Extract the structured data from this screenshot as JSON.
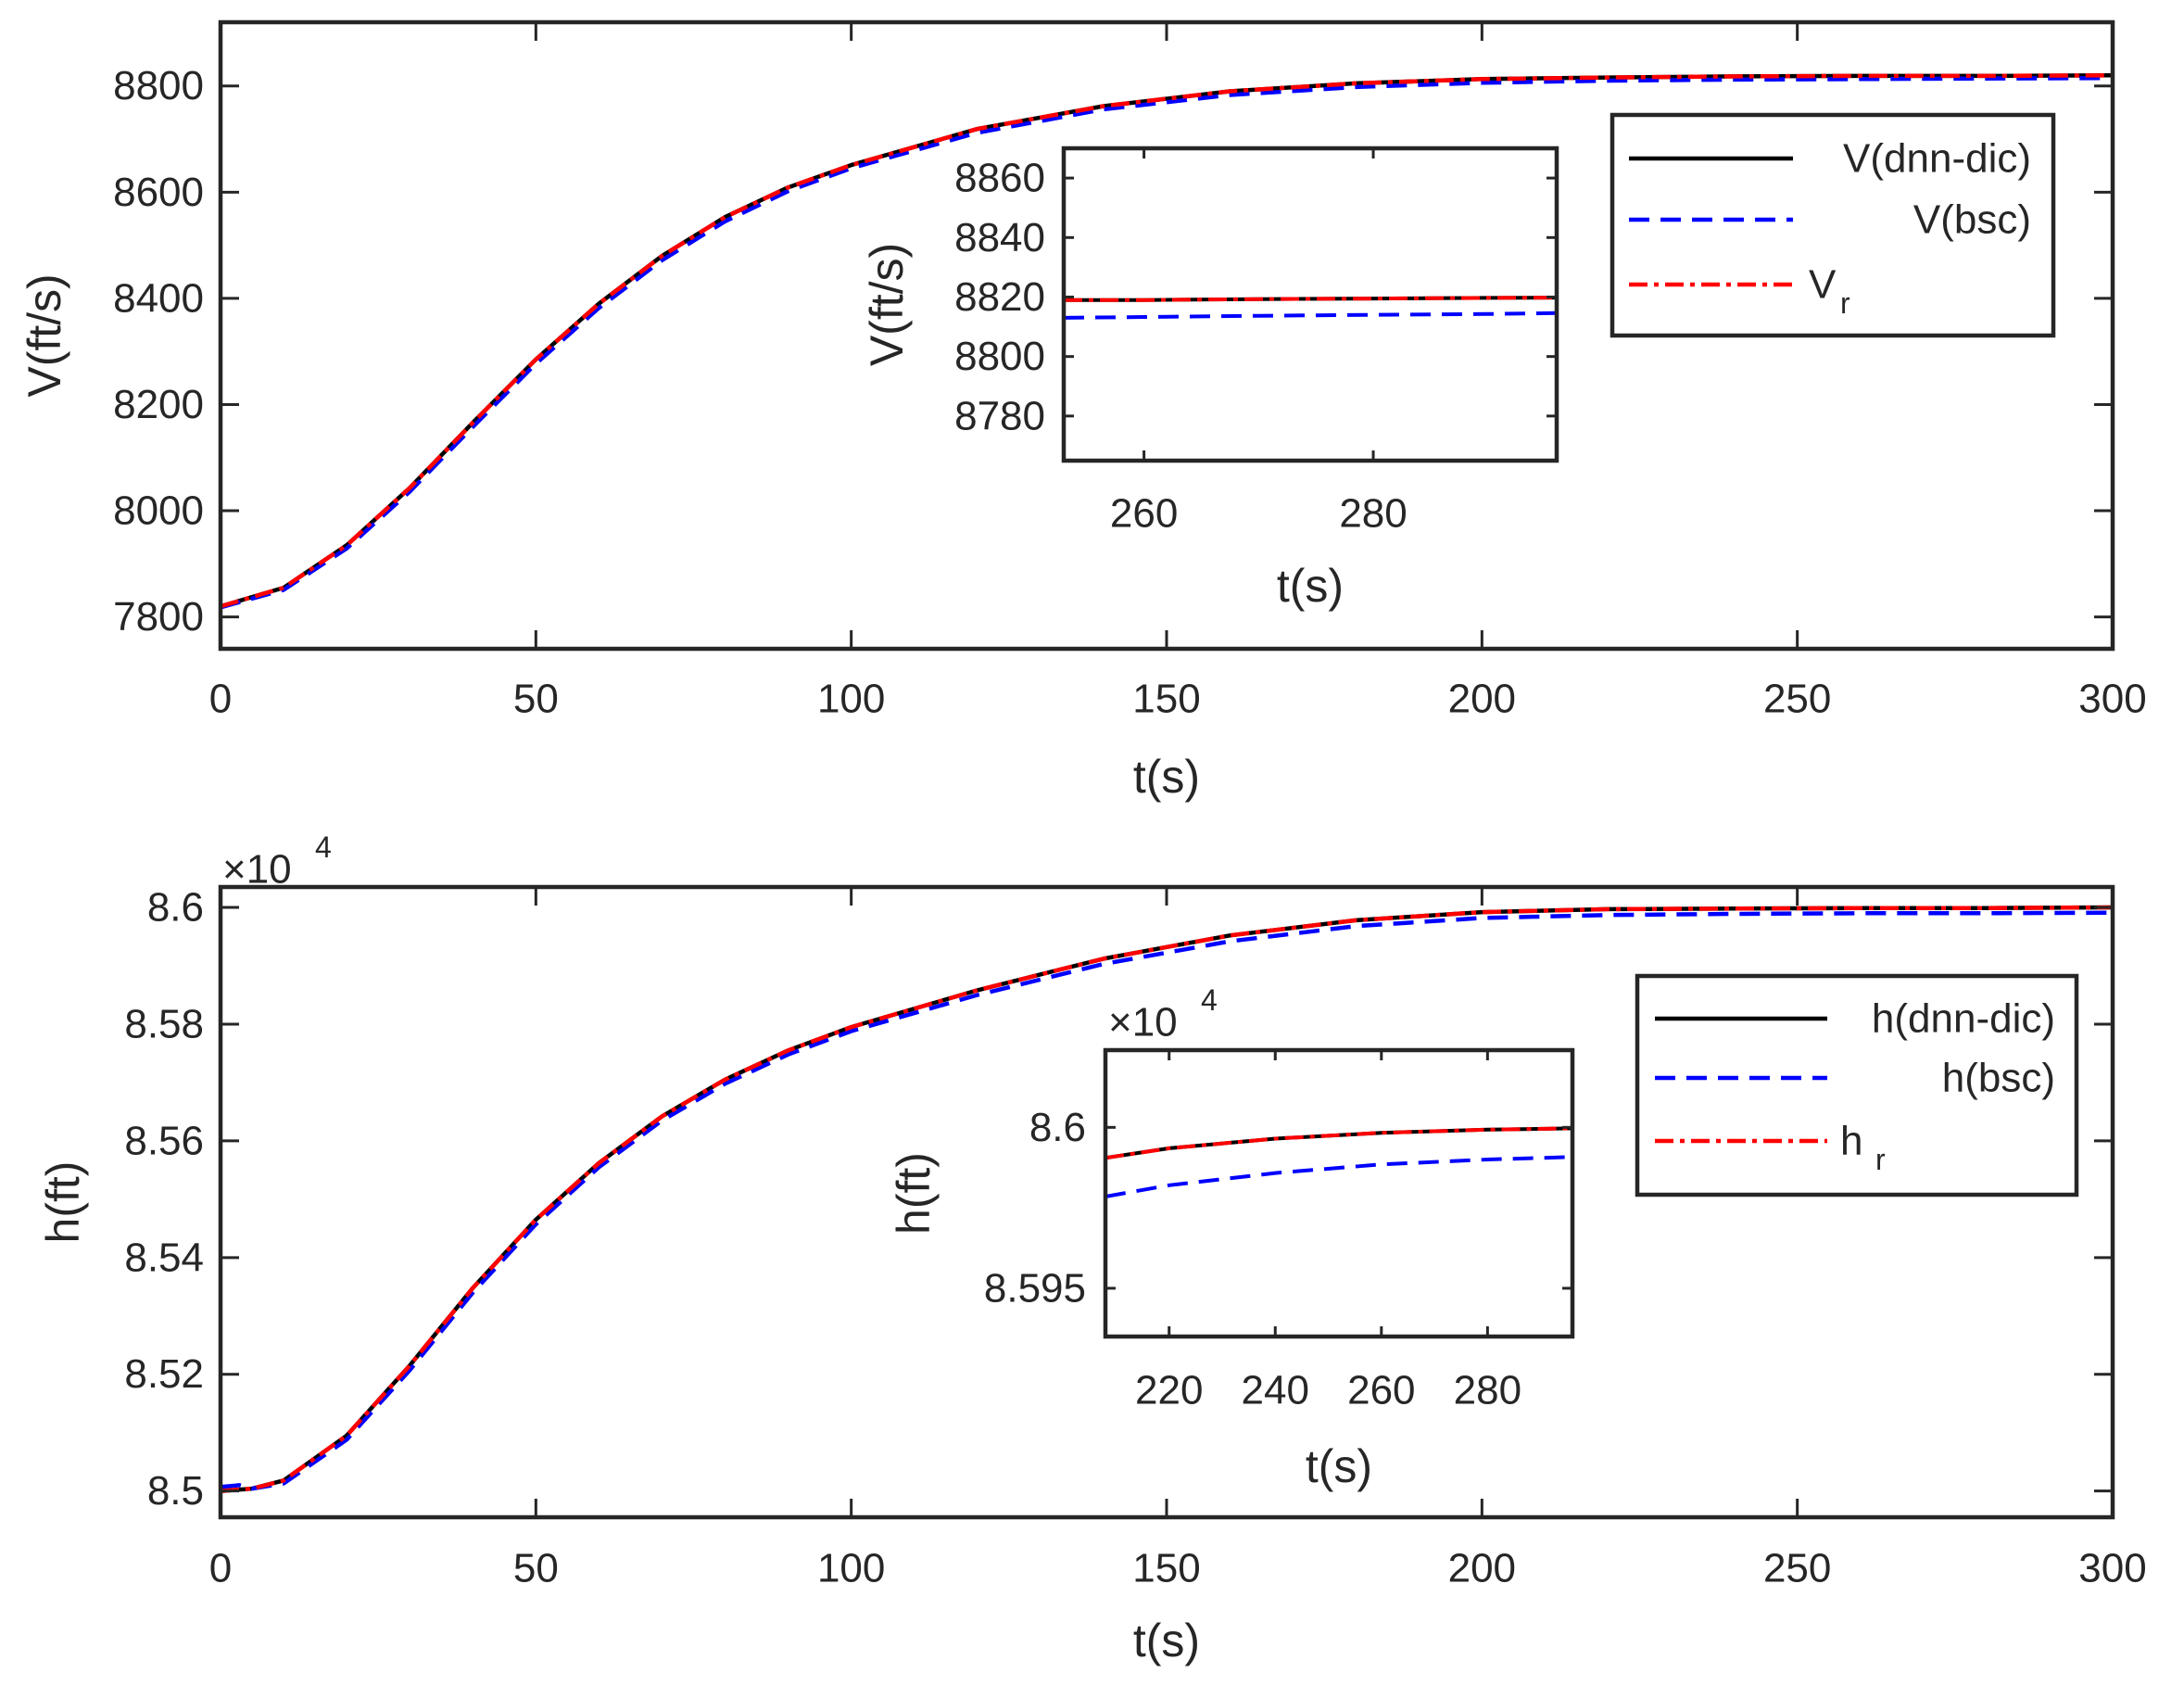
{
  "colors": {
    "dnn_dic": "#000000",
    "bsc": "#0000ff",
    "ref": "#ff0000",
    "axis": "#262626",
    "background": "#ffffff"
  },
  "chart_data": [
    {
      "id": "top_main",
      "type": "line",
      "title": "",
      "xlabel": "t(s)",
      "ylabel": "V(ft/s)",
      "xlim": [
        0,
        300
      ],
      "ylim": [
        7740,
        8920
      ],
      "xticks": [
        0,
        50,
        100,
        150,
        200,
        250,
        300
      ],
      "xtick_labels": [
        "0",
        "50",
        "100",
        "150",
        "200",
        "250",
        "300"
      ],
      "yticks": [
        7800,
        8000,
        8200,
        8400,
        8600,
        8800
      ],
      "ytick_labels": [
        "7800",
        "8000",
        "8200",
        "8400",
        "8600",
        "8800"
      ],
      "legend": {
        "placement": "top-right",
        "entries": [
          "V(dnn-dic)",
          "V(bsc)",
          "V",
          "r"
        ]
      },
      "series": [
        {
          "name": "V(dnn-dic)",
          "style": "solid",
          "color": "#000000",
          "x": [
            0,
            10,
            20,
            30,
            40,
            50,
            60,
            70,
            80,
            90,
            100,
            120,
            140,
            160,
            180,
            200,
            220,
            240,
            260,
            280,
            300
          ],
          "y": [
            7820,
            7855,
            7935,
            8043,
            8166,
            8285,
            8390,
            8480,
            8553,
            8609,
            8651,
            8719,
            8762,
            8790,
            8805,
            8813,
            8816,
            8818,
            8819,
            8819,
            8820
          ]
        },
        {
          "name": "V(bsc)",
          "style": "dashed",
          "color": "#0000ff",
          "x": [
            0,
            10,
            20,
            30,
            40,
            50,
            60,
            70,
            80,
            90,
            100,
            120,
            140,
            160,
            180,
            200,
            220,
            240,
            260,
            280,
            300
          ],
          "y": [
            7818,
            7851,
            7929,
            8036,
            8158,
            8277,
            8382,
            8472,
            8545,
            8602,
            8645,
            8712,
            8756,
            8783,
            8798,
            8806,
            8810,
            8812,
            8813,
            8814,
            8815
          ]
        },
        {
          "name": "Vr",
          "style": "dashdot",
          "color": "#ff0000",
          "x": [
            0,
            10,
            20,
            30,
            40,
            50,
            60,
            70,
            80,
            90,
            100,
            120,
            140,
            160,
            180,
            200,
            220,
            240,
            260,
            280,
            300
          ],
          "y": [
            7820,
            7855,
            7935,
            8043,
            8166,
            8285,
            8390,
            8480,
            8553,
            8609,
            8651,
            8719,
            8762,
            8790,
            8805,
            8813,
            8816,
            8818,
            8819,
            8819,
            8820
          ]
        }
      ]
    },
    {
      "id": "top_inset",
      "type": "line",
      "xlabel": "t(s)",
      "ylabel": "V(ft/s)",
      "xlim": [
        253,
        296
      ],
      "ylim": [
        8765,
        8870
      ],
      "xticks": [
        260,
        280
      ],
      "xtick_labels": [
        "260",
        "280"
      ],
      "yticks": [
        8780,
        8800,
        8820,
        8840,
        8860
      ],
      "ytick_labels": [
        "8780",
        "8800",
        "8820",
        "8840",
        "8860"
      ],
      "series": [
        {
          "name": "V(dnn-dic)",
          "style": "solid",
          "color": "#000000",
          "x": [
            253,
            260,
            270,
            280,
            290,
            296
          ],
          "y": [
            8819,
            8819,
            8819.3,
            8819.5,
            8819.7,
            8819.8
          ]
        },
        {
          "name": "V(bsc)",
          "style": "dashed",
          "color": "#0000ff",
          "x": [
            253,
            260,
            270,
            280,
            290,
            296
          ],
          "y": [
            8813,
            8813.3,
            8813.7,
            8814,
            8814.3,
            8814.6
          ]
        },
        {
          "name": "Vr",
          "style": "dashdot",
          "color": "#ff0000",
          "x": [
            253,
            260,
            270,
            280,
            290,
            296
          ],
          "y": [
            8819,
            8819,
            8819.3,
            8819.5,
            8819.7,
            8819.8
          ]
        }
      ]
    },
    {
      "id": "bottom_main",
      "type": "line",
      "title": "",
      "xlabel": "t(s)",
      "ylabel": "h(ft)",
      "exponent_label": "×10",
      "exponent_power": "4",
      "xlim": [
        0,
        300
      ],
      "ylim": [
        8.4955,
        8.6035
      ],
      "xticks": [
        0,
        50,
        100,
        150,
        200,
        250,
        300
      ],
      "xtick_labels": [
        "0",
        "50",
        "100",
        "150",
        "200",
        "250",
        "300"
      ],
      "yticks": [
        8.5,
        8.52,
        8.54,
        8.56,
        8.58,
        8.6
      ],
      "ytick_labels": [
        "8.5",
        "8.52",
        "8.54",
        "8.56",
        "8.58",
        "8.6"
      ],
      "legend": {
        "placement": "top-right",
        "entries": [
          "h(dnn-dic)",
          "h(bsc)",
          "h",
          "r"
        ]
      },
      "series": [
        {
          "name": "h(dnn-dic)",
          "style": "solid",
          "color": "#000000",
          "x": [
            0,
            5,
            10,
            20,
            30,
            40,
            50,
            60,
            70,
            80,
            90,
            100,
            120,
            140,
            160,
            180,
            200,
            220,
            240,
            260,
            280,
            300
          ],
          "y": [
            8.5,
            8.5004,
            8.5018,
            8.5095,
            8.5215,
            8.5348,
            8.5465,
            8.5562,
            8.5642,
            8.5705,
            8.5755,
            8.5795,
            8.5858,
            8.5912,
            8.5952,
            8.5978,
            8.5992,
            8.5997,
            8.5998,
            8.5999,
            8.5999,
            8.6
          ]
        },
        {
          "name": "h(bsc)",
          "style": "dashed",
          "color": "#0000ff",
          "x": [
            0,
            3,
            5,
            10,
            20,
            30,
            40,
            50,
            60,
            70,
            80,
            90,
            100,
            120,
            140,
            160,
            180,
            200,
            220,
            240,
            260,
            280,
            300
          ],
          "y": [
            8.5007,
            8.501,
            8.5004,
            8.5013,
            8.5088,
            8.5207,
            8.534,
            8.5457,
            8.5555,
            8.5635,
            8.5698,
            8.5748,
            8.5788,
            8.585,
            8.5903,
            8.5942,
            8.5968,
            8.5982,
            8.5987,
            8.5989,
            8.599,
            8.599,
            8.5991
          ]
        },
        {
          "name": "hr",
          "style": "dashdot",
          "color": "#ff0000",
          "x": [
            0,
            5,
            10,
            20,
            30,
            40,
            50,
            60,
            70,
            80,
            90,
            100,
            120,
            140,
            160,
            180,
            200,
            220,
            240,
            260,
            280,
            300
          ],
          "y": [
            8.5,
            8.5004,
            8.5018,
            8.5095,
            8.5215,
            8.5348,
            8.5465,
            8.5562,
            8.5642,
            8.5705,
            8.5755,
            8.5795,
            8.5858,
            8.5912,
            8.5952,
            8.5978,
            8.5992,
            8.5997,
            8.5998,
            8.5999,
            8.5999,
            8.6
          ]
        }
      ]
    },
    {
      "id": "bottom_inset",
      "type": "line",
      "xlabel": "t(s)",
      "ylabel": "h(ft)",
      "exponent_label": "×10",
      "exponent_power": "4",
      "xlim": [
        208,
        296
      ],
      "ylim": [
        8.5935,
        8.6024
      ],
      "xticks": [
        220,
        240,
        260,
        280
      ],
      "xtick_labels": [
        "220",
        "240",
        "260",
        "280"
      ],
      "yticks": [
        8.595,
        8.6
      ],
      "ytick_labels": [
        "8.595",
        "8.6"
      ],
      "series": [
        {
          "name": "h(dnn-dic)",
          "style": "solid",
          "color": "#000000",
          "x": [
            208,
            220,
            240,
            260,
            280,
            296
          ],
          "y": [
            8.59905,
            8.59935,
            8.59965,
            8.59983,
            8.59993,
            8.59997
          ]
        },
        {
          "name": "h(bsc)",
          "style": "dashed",
          "color": "#0000ff",
          "x": [
            208,
            220,
            240,
            260,
            280,
            296
          ],
          "y": [
            8.59785,
            8.5982,
            8.59858,
            8.59885,
            8.599,
            8.59908
          ]
        },
        {
          "name": "hr",
          "style": "dashdot",
          "color": "#ff0000",
          "x": [
            208,
            220,
            240,
            260,
            280,
            296
          ],
          "y": [
            8.59905,
            8.59935,
            8.59965,
            8.59983,
            8.59993,
            8.59997
          ]
        }
      ]
    }
  ]
}
